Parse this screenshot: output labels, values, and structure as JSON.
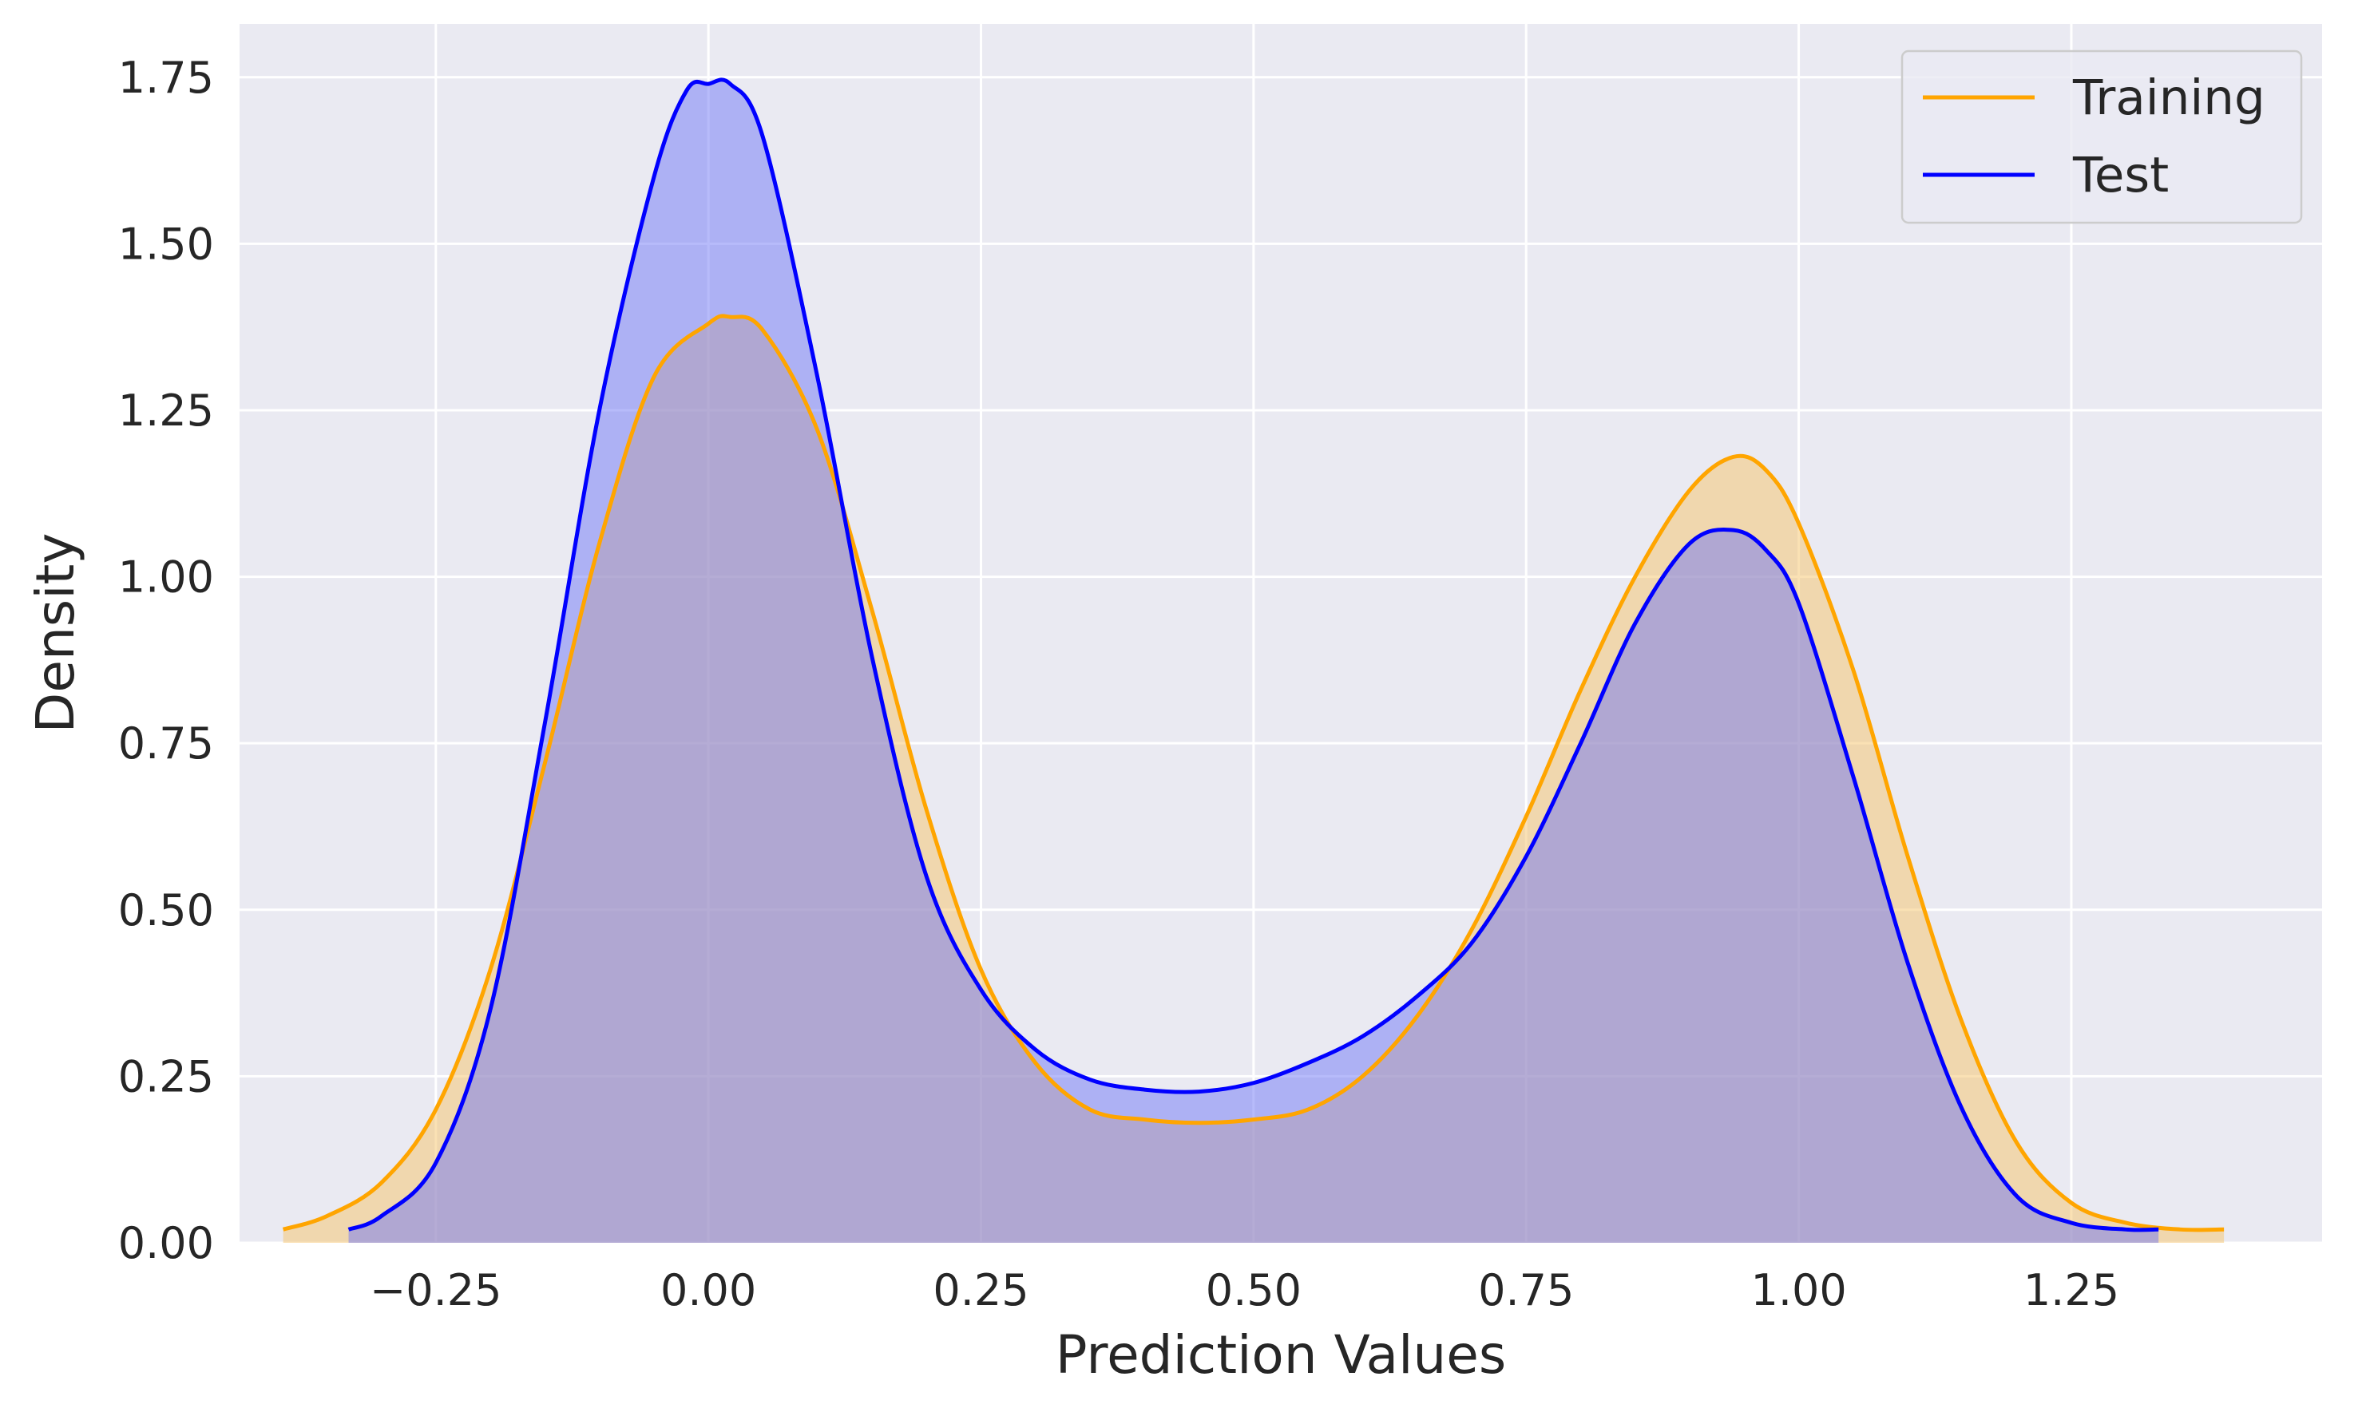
{
  "chart_data": {
    "type": "area",
    "xlabel": "Prediction Values",
    "ylabel": "Density",
    "xlim": [
      -0.43,
      1.48
    ],
    "ylim": [
      0,
      1.83
    ],
    "x_ticks": [
      -0.25,
      0.0,
      0.25,
      0.5,
      0.75,
      1.0,
      1.25
    ],
    "x_tick_labels": [
      "−0.25",
      "0.00",
      "0.25",
      "0.50",
      "0.75",
      "1.00",
      "1.25"
    ],
    "y_ticks": [
      0,
      0.25,
      0.5,
      0.75,
      1.0,
      1.25,
      1.5,
      1.75
    ],
    "y_tick_labels": [
      "0.00",
      "0.25",
      "0.50",
      "0.75",
      "1.00",
      "1.25",
      "1.50",
      "1.75"
    ],
    "grid": true,
    "background": "#eaeaf2",
    "legend_position": "top-right",
    "series": [
      {
        "name": "Training",
        "color": "#ffa500",
        "fill_color": "#f5c46a",
        "x": [
          -0.39,
          -0.35,
          -0.3,
          -0.25,
          -0.2,
          -0.15,
          -0.1,
          -0.05,
          0.0,
          0.02,
          0.05,
          0.1,
          0.15,
          0.2,
          0.25,
          0.3,
          0.35,
          0.4,
          0.45,
          0.5,
          0.55,
          0.6,
          0.65,
          0.7,
          0.75,
          0.8,
          0.85,
          0.9,
          0.94,
          0.97,
          1.0,
          1.05,
          1.1,
          1.15,
          1.2,
          1.25,
          1.3,
          1.35,
          1.39
        ],
        "y": [
          0.02,
          0.04,
          0.09,
          0.2,
          0.41,
          0.72,
          1.05,
          1.3,
          1.38,
          1.39,
          1.37,
          1.22,
          0.95,
          0.65,
          0.41,
          0.27,
          0.2,
          0.185,
          0.18,
          0.185,
          0.2,
          0.25,
          0.34,
          0.47,
          0.64,
          0.83,
          1.0,
          1.13,
          1.18,
          1.16,
          1.08,
          0.86,
          0.58,
          0.33,
          0.15,
          0.06,
          0.03,
          0.02,
          0.02
        ]
      },
      {
        "name": "Test",
        "color": "#0000ff",
        "fill_color": "#6f78f5",
        "x": [
          -0.33,
          -0.3,
          -0.25,
          -0.2,
          -0.15,
          -0.1,
          -0.05,
          -0.02,
          0.0,
          0.02,
          0.05,
          0.1,
          0.15,
          0.2,
          0.25,
          0.3,
          0.35,
          0.4,
          0.45,
          0.5,
          0.55,
          0.6,
          0.65,
          0.7,
          0.75,
          0.8,
          0.85,
          0.9,
          0.94,
          0.97,
          1.0,
          1.05,
          1.1,
          1.15,
          1.2,
          1.25,
          1.3,
          1.33
        ],
        "y": [
          0.02,
          0.04,
          0.12,
          0.35,
          0.78,
          1.25,
          1.6,
          1.73,
          1.74,
          1.74,
          1.66,
          1.3,
          0.88,
          0.55,
          0.38,
          0.29,
          0.245,
          0.23,
          0.227,
          0.24,
          0.27,
          0.31,
          0.37,
          0.45,
          0.58,
          0.75,
          0.93,
          1.05,
          1.07,
          1.04,
          0.96,
          0.7,
          0.42,
          0.2,
          0.07,
          0.03,
          0.02,
          0.02
        ]
      }
    ]
  }
}
